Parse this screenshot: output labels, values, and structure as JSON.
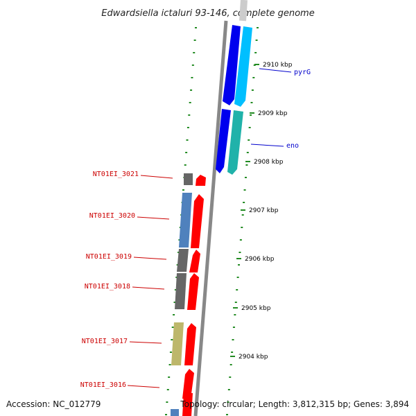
{
  "title": "Edwardsiella ictaluri 93-146, complete genome",
  "accession": "Accession: NC_012779",
  "topology": "Topology: circular; Length: 3,812,315 bp; Genes: 3,894",
  "ticks": [
    {
      "label": "2910 kbp"
    },
    {
      "label": "2909 kbp"
    },
    {
      "label": "2908 kbp"
    },
    {
      "label": "2907 kbp"
    },
    {
      "label": "2906 kbp"
    },
    {
      "label": "2905 kbp"
    },
    {
      "label": "2904 kbp"
    }
  ],
  "right_genes": [
    {
      "label": "pyrG",
      "color": "#0000cc"
    },
    {
      "label": "eno",
      "color": "#0000cc"
    }
  ],
  "left_genes": [
    {
      "label": "NT01EI_3021",
      "color": "#cc0000"
    },
    {
      "label": "NT01EI_3020",
      "color": "#cc0000"
    },
    {
      "label": "NT01EI_3019",
      "color": "#cc0000"
    },
    {
      "label": "NT01EI_3018",
      "color": "#cc0000"
    },
    {
      "label": "NT01EI_3017",
      "color": "#cc0000"
    },
    {
      "label": "NT01EI_3016",
      "color": "#cc0000"
    }
  ],
  "colors": {
    "backbone": "#888888",
    "cds_forward": "#ff0000",
    "cds_reverse": "#0000ee",
    "blue_steel": "#4f81bd",
    "gray_feature": "#666666",
    "khaki_feature": "#bdb76b",
    "cyan": "#00bfff",
    "teal": "#20b2aa",
    "dots": "#228b22"
  }
}
